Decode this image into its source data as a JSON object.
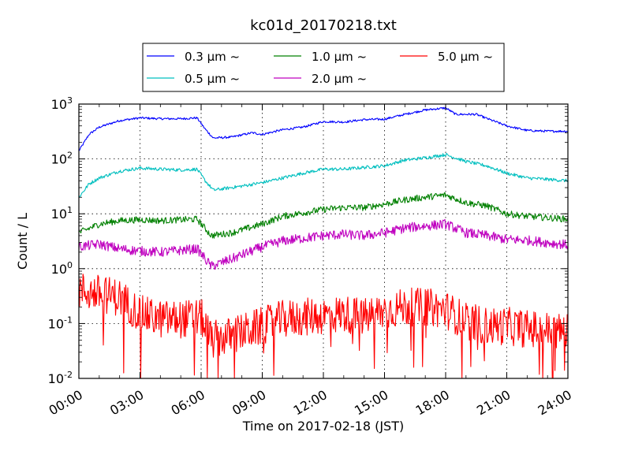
{
  "chart_data": {
    "type": "line",
    "title": "kc01d_20170218.txt",
    "xlabel": "Time on 2017-02-18 (JST)",
    "ylabel": "Count / L",
    "x_unit": "hours",
    "xlim": [
      0,
      24
    ],
    "ylim": [
      0.01,
      1000
    ],
    "yscale": "log",
    "grid": true,
    "legend_position": "top-center",
    "x_tick_labels": [
      "00:00",
      "03:00",
      "06:00",
      "09:00",
      "12:00",
      "15:00",
      "18:00",
      "21:00",
      "24:00"
    ],
    "x_tick_values": [
      0,
      3,
      6,
      9,
      12,
      15,
      18,
      21,
      24
    ],
    "y_tick_labels": [
      {
        "base": "10",
        "exp": "-2",
        "value": 0.01
      },
      {
        "base": "10",
        "exp": "-1",
        "value": 0.1
      },
      {
        "base": "10",
        "exp": "0",
        "value": 1
      },
      {
        "base": "10",
        "exp": "1",
        "value": 10
      },
      {
        "base": "10",
        "exp": "2",
        "value": 100
      },
      {
        "base": "10",
        "exp": "3",
        "value": 1000
      }
    ],
    "series": [
      {
        "name": "0.3 μm ~",
        "color": "#0000ff",
        "noise": 0.02,
        "x": [
          0,
          0.5,
          1,
          2,
          3,
          4,
          5,
          5.8,
          6.2,
          6.6,
          7.5,
          8.5,
          9,
          10,
          11,
          12,
          13,
          14,
          15,
          16,
          17,
          18,
          18.5,
          19.5,
          20,
          21,
          22,
          23,
          24
        ],
        "y": [
          140,
          280,
          380,
          500,
          560,
          540,
          540,
          560,
          350,
          240,
          250,
          300,
          280,
          340,
          380,
          480,
          470,
          520,
          530,
          650,
          780,
          850,
          650,
          650,
          550,
          400,
          330,
          320,
          320
        ]
      },
      {
        "name": "0.5 μm ~",
        "color": "#00bfbf",
        "noise": 0.03,
        "x": [
          0,
          0.5,
          1,
          2,
          3,
          4,
          5,
          5.8,
          6.2,
          6.6,
          8,
          9,
          10,
          11,
          12,
          13,
          14,
          15,
          16,
          17,
          18,
          19,
          20,
          21,
          22,
          24
        ],
        "y": [
          20,
          35,
          45,
          60,
          68,
          65,
          63,
          65,
          40,
          27,
          32,
          37,
          45,
          55,
          65,
          65,
          70,
          75,
          95,
          105,
          120,
          90,
          75,
          55,
          45,
          40
        ]
      },
      {
        "name": "1.0 μm ~",
        "color": "#008000",
        "noise": 0.06,
        "x": [
          0,
          1,
          2,
          3,
          4,
          5.8,
          6.5,
          7.5,
          9,
          10,
          12,
          13,
          14,
          15,
          16,
          17,
          18,
          19,
          20,
          21,
          22,
          24
        ],
        "y": [
          4.5,
          6.5,
          7.5,
          7.8,
          7.5,
          8,
          4,
          4.5,
          6.5,
          9,
          12,
          13,
          13,
          15,
          18,
          20,
          22,
          16,
          14,
          10,
          9,
          8
        ]
      },
      {
        "name": "2.0 μm ~",
        "color": "#bf00bf",
        "noise": 0.09,
        "x": [
          0,
          1,
          2,
          3,
          4,
          5.8,
          6.5,
          7.5,
          9,
          10,
          12,
          13,
          14,
          15,
          16,
          17,
          18,
          19,
          20,
          21,
          22,
          24
        ],
        "y": [
          2.5,
          2.8,
          2.3,
          2.1,
          2.0,
          2.3,
          1.1,
          1.5,
          2.5,
          3.2,
          4.0,
          4.2,
          4.0,
          4.5,
          5.5,
          6.0,
          6.5,
          4.5,
          4.0,
          3.4,
          3.3,
          2.7
        ]
      },
      {
        "name": "5.0 μm ~",
        "color": "#ff0000",
        "noise": 0.35,
        "x": [
          0,
          1,
          2,
          3,
          4,
          5,
          6,
          6.5,
          7.5,
          9,
          10,
          12,
          13,
          14,
          15,
          16,
          17,
          18,
          19,
          20,
          21,
          22,
          24
        ],
        "y": [
          0.4,
          0.35,
          0.3,
          0.15,
          0.12,
          0.12,
          0.13,
          0.05,
          0.06,
          0.09,
          0.12,
          0.14,
          0.15,
          0.13,
          0.17,
          0.2,
          0.2,
          0.18,
          0.11,
          0.09,
          0.09,
          0.08,
          0.07
        ]
      }
    ]
  }
}
